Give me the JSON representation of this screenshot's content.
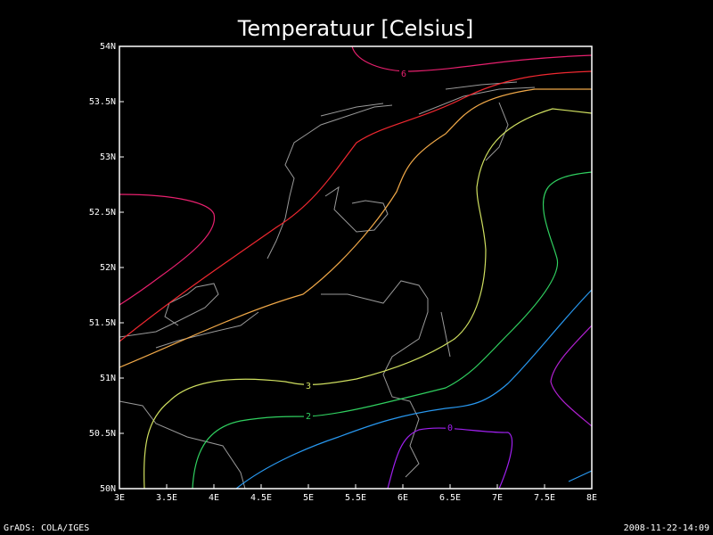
{
  "chart_data": {
    "type": "contour",
    "title": "Temperatuur [Celsius]",
    "xlim": [
      3,
      8
    ],
    "ylim": [
      50,
      54
    ],
    "xticks": [
      {
        "value": 3,
        "label": "3E"
      },
      {
        "value": 3.5,
        "label": "3.5E"
      },
      {
        "value": 4,
        "label": "4E"
      },
      {
        "value": 4.5,
        "label": "4.5E"
      },
      {
        "value": 5,
        "label": "5E"
      },
      {
        "value": 5.5,
        "label": "5.5E"
      },
      {
        "value": 6,
        "label": "6E"
      },
      {
        "value": 6.5,
        "label": "6.5E"
      },
      {
        "value": 7,
        "label": "7E"
      },
      {
        "value": 7.5,
        "label": "7.5E"
      },
      {
        "value": 8,
        "label": "8E"
      }
    ],
    "yticks": [
      {
        "value": 50,
        "label": "50N"
      },
      {
        "value": 50.5,
        "label": "50.5N"
      },
      {
        "value": 51,
        "label": "51N"
      },
      {
        "value": 51.5,
        "label": "51.5N"
      },
      {
        "value": 52,
        "label": "52N"
      },
      {
        "value": 52.5,
        "label": "52.5N"
      },
      {
        "value": 53,
        "label": "53N"
      },
      {
        "value": 53.5,
        "label": "53.5N"
      },
      {
        "value": 54,
        "label": "54N"
      }
    ],
    "contours": [
      {
        "level": 6,
        "color": "#e8206e",
        "labeled": true
      },
      {
        "level": 5,
        "color": "#f02830",
        "labeled": false
      },
      {
        "level": 4,
        "color": "#f0a848",
        "labeled": false
      },
      {
        "level": 3,
        "color": "#d0e060",
        "labeled": true
      },
      {
        "level": 2,
        "color": "#30d060",
        "labeled": true
      },
      {
        "level": 1,
        "color": "#2898f0",
        "labeled": false
      },
      {
        "level": 0,
        "color": "#a020f0",
        "labeled": true
      },
      {
        "level": -1,
        "color": "#b020d0",
        "labeled": false
      }
    ],
    "footer_left": "GrADS: COLA/IGES",
    "footer_right": "2008-11-22-14:09"
  }
}
